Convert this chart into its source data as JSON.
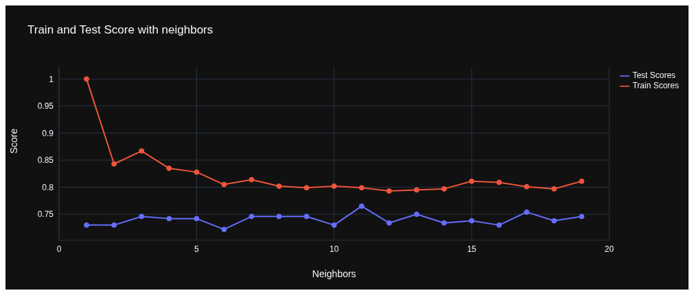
{
  "chart_data": {
    "type": "line",
    "title": "Train and Test Score with neighbors",
    "xlabel": "Neighbors",
    "ylabel": "Score",
    "x": [
      1,
      2,
      3,
      4,
      5,
      6,
      7,
      8,
      9,
      10,
      11,
      12,
      13,
      14,
      15,
      16,
      17,
      18,
      19
    ],
    "series": [
      {
        "name": "Test Scores",
        "color": "#636efa",
        "values": [
          0.73,
          0.73,
          0.746,
          0.742,
          0.742,
          0.722,
          0.746,
          0.746,
          0.746,
          0.73,
          0.765,
          0.734,
          0.75,
          0.734,
          0.738,
          0.73,
          0.754,
          0.738,
          0.746
        ]
      },
      {
        "name": "Train Scores",
        "color": "#ef553b",
        "values": [
          1.0,
          0.843,
          0.867,
          0.835,
          0.828,
          0.805,
          0.814,
          0.802,
          0.799,
          0.802,
          0.799,
          0.793,
          0.795,
          0.797,
          0.811,
          0.809,
          0.801,
          0.797,
          0.811
        ]
      }
    ],
    "xlim": [
      0,
      20
    ],
    "xticks": [
      0,
      5,
      10,
      15,
      20
    ],
    "ylim": [
      0.702,
      1.022
    ],
    "yticks": [
      0.75,
      0.8,
      0.85,
      0.9,
      0.95,
      1
    ],
    "grid": true,
    "legend": "top right",
    "marker": "circle",
    "line_style": "solid"
  }
}
